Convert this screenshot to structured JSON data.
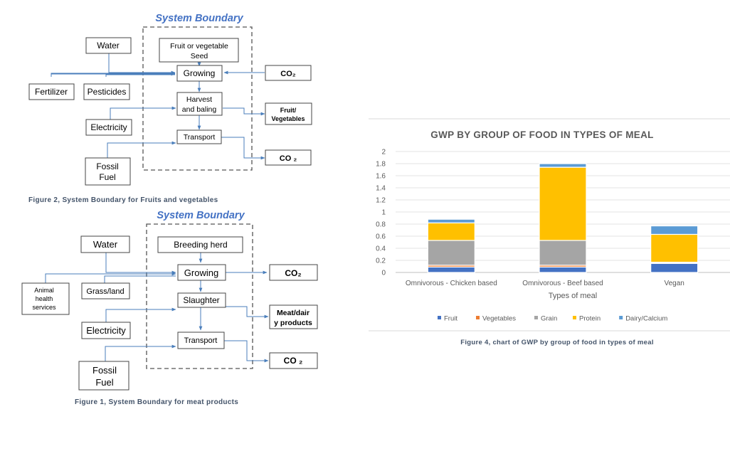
{
  "figure2": {
    "title": "System Boundary",
    "boxes": {
      "seed_line1": "Fruit  or vegetable",
      "seed_line2": "Seed",
      "growing": "Growing",
      "harvest_line1": "Harvest",
      "harvest_line2": "and baling",
      "transport": "Transport",
      "water": "Water",
      "fertilizer": "Fertilizer",
      "pesticides": "Pesticides",
      "electricity": "Electricity",
      "fossil_line1": "Fossil",
      "fossil_line2": "Fuel",
      "co2_in": "CO₂",
      "fruit_veg_line1": "Fruit/",
      "fruit_veg_line2": "Vegetables",
      "co2_out": "CO ₂"
    },
    "caption": "Figure 2, System Boundary for Fruits and vegetables"
  },
  "figure1": {
    "title": "System Boundary",
    "boxes": {
      "breeding": "Breeding herd",
      "growing": "Growing",
      "slaughter": "Slaughter",
      "transport": "Transport",
      "water": "Water",
      "animal_line1": "Animal",
      "animal_line2": "health",
      "animal_line3": "services",
      "grass": "Grass/land",
      "electricity": "Electricity",
      "fossil_line1": "Fossil",
      "fossil_line2": "Fuel",
      "co2_a": "CO₂",
      "meat_line1": "Meat/dair",
      "meat_line2": "y products",
      "co2_b": "CO ₂"
    },
    "caption": "Figure 1, System Boundary for meat products"
  },
  "chart_data": {
    "type": "bar",
    "stacked": true,
    "title": "GWP BY GROUP OF FOOD IN TYPES OF MEAL",
    "xlabel": "Types of meal",
    "ylabel": "",
    "categories": [
      "Omnivorous - Chicken based",
      "Omnivorous - Beef based",
      "Vegan"
    ],
    "ylim": [
      0,
      2
    ],
    "yticks": [
      "0",
      "0.2",
      "0.4",
      "0.6",
      "0.8",
      "1",
      "1.2",
      "1.4",
      "1.6",
      "1.8",
      "2"
    ],
    "grid": true,
    "legend_position": "bottom",
    "series": [
      {
        "name": "Fruit",
        "color": "#4472c4",
        "values": [
          0.09,
          0.09,
          0.15
        ]
      },
      {
        "name": "Vegetables",
        "color": "#ed7d31",
        "values": [
          0.03,
          0.03,
          0.01
        ]
      },
      {
        "name": "Grain",
        "color": "#a5a5a5",
        "values": [
          0.41,
          0.41,
          0.01
        ]
      },
      {
        "name": "Protein",
        "color": "#ffc000",
        "values": [
          0.29,
          1.21,
          0.46
        ]
      },
      {
        "name": "Dairy/Calcium",
        "color": "#5b9bd5",
        "values": [
          0.06,
          0.06,
          0.14
        ]
      }
    ]
  },
  "chart_caption": "Figure 4, chart of GWP by group of food in types of meal"
}
